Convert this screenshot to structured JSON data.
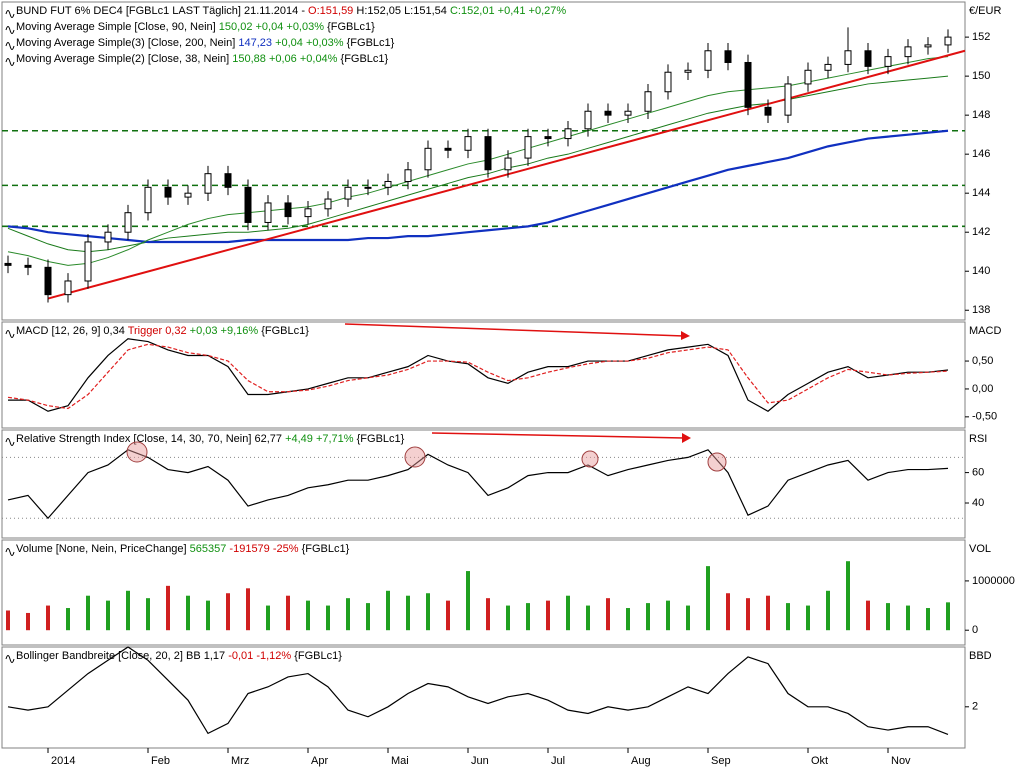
{
  "chart_data": [
    {
      "type": "candlestick",
      "axis_label": "€/EUR",
      "title_parts": [
        {
          "text": "BUND FUT 6% DEC4 [FGBLc1 LAST Täglich] 21.11.2014 - ",
          "color": "#000000"
        },
        {
          "text": "O:151,59",
          "color": "#d00000"
        },
        {
          "text": " H:152,05 L:151,54 ",
          "color": "#000000"
        },
        {
          "text": "C:152,01 +0,41 +0,27%",
          "color": "#109010"
        }
      ],
      "open": [
        140.4,
        140.3,
        140.2,
        138.8,
        139.5,
        141.5,
        142,
        143,
        144.3,
        143.8,
        144,
        145,
        144.3,
        142.5,
        143.5,
        142.8,
        143.2,
        143.7,
        144.3,
        144.3,
        144.6,
        145.2,
        146.3,
        146.2,
        146.9,
        145.2,
        145.8,
        146.9,
        146.8,
        147.3,
        148.2,
        148,
        148.2,
        149.2,
        150.2,
        150.3,
        151.3,
        150.7,
        148.4,
        148,
        149.6,
        150.3,
        150.6,
        151.3,
        150.5,
        151,
        151.5,
        151.6
      ],
      "high": [
        140.8,
        140.7,
        140.6,
        139.9,
        141.9,
        142.4,
        143.4,
        144.7,
        144.7,
        144.4,
        145.4,
        145.4,
        144.7,
        143.9,
        143.9,
        143.6,
        144.1,
        144.7,
        144.7,
        145.0,
        145.6,
        146.7,
        146.7,
        147.3,
        147.3,
        146.2,
        147.3,
        147.3,
        147.7,
        148.6,
        148.6,
        148.6,
        149.6,
        150.6,
        150.7,
        151.7,
        151.7,
        151.1,
        148.8,
        150.0,
        150.7,
        151.0,
        152.5,
        151.7,
        151.4,
        151.9,
        152.0,
        152.4
      ],
      "low": [
        139.9,
        139.8,
        138.4,
        138.4,
        139.1,
        141.1,
        141.6,
        142.6,
        143.4,
        143.4,
        143.6,
        143.9,
        142.1,
        142.1,
        142.4,
        142.4,
        142.8,
        143.3,
        143.9,
        143.9,
        144.2,
        144.8,
        145.8,
        145.8,
        144.8,
        144.8,
        145.4,
        146.4,
        146.4,
        146.9,
        147.6,
        147.6,
        147.8,
        148.8,
        149.8,
        149.9,
        150.3,
        148.0,
        147.6,
        147.6,
        149.2,
        149.9,
        150.2,
        150.1,
        150.1,
        150.6,
        151.1,
        151.2
      ],
      "close": [
        140.3,
        140.2,
        138.8,
        139.5,
        141.5,
        142,
        143,
        144.3,
        143.8,
        144,
        145,
        144.3,
        142.5,
        143.5,
        142.8,
        143.2,
        143.7,
        144.3,
        144.3,
        144.6,
        145.2,
        146.3,
        146.2,
        146.9,
        145.2,
        145.8,
        146.9,
        146.8,
        147.3,
        148.2,
        148,
        148.2,
        149.2,
        150.2,
        150.3,
        151.3,
        150.7,
        148.4,
        148,
        149.6,
        150.3,
        150.6,
        151.3,
        150.5,
        151,
        151.5,
        151.6,
        152.0
      ],
      "series": [
        {
          "name": "Moving Average Simple [Close, 90, Nein] ",
          "color": "#1a7a1a",
          "legend": [
            {
              "text": "150,02 ",
              "color": "#109010"
            },
            {
              "text": "+0,04 +0,03% ",
              "color": "#109010"
            },
            {
              "text": "{FGBLc1}",
              "color": "#000000"
            }
          ],
          "values": [
            142.2,
            141.8,
            141.4,
            141.1,
            141,
            141.1,
            141.3,
            141.5,
            141.7,
            141.8,
            141.9,
            142,
            142,
            142.1,
            142.2,
            142.4,
            142.7,
            143,
            143.3,
            143.6,
            143.9,
            144.2,
            144.5,
            144.8,
            145,
            145.3,
            145.5,
            145.8,
            146,
            146.3,
            146.6,
            146.9,
            147.2,
            147.5,
            147.8,
            148.1,
            148.3,
            148.5,
            148.6,
            148.8,
            149,
            149.2,
            149.4,
            149.6,
            149.7,
            149.8,
            149.9,
            150.0
          ]
        },
        {
          "name": "Moving Average Simple(3) [Close, 200, Nein] ",
          "color": "#1030c0",
          "legend": [
            {
              "text": "147,23 ",
              "color": "#1030c0"
            },
            {
              "text": "+0,04 +0,03% ",
              "color": "#109010"
            },
            {
              "text": "{FGBLc1}",
              "color": "#000000"
            }
          ],
          "values": [
            142.3,
            142.2,
            142,
            141.9,
            141.8,
            141.7,
            141.6,
            141.5,
            141.5,
            141.5,
            141.5,
            141.5,
            141.6,
            141.6,
            141.6,
            141.6,
            141.6,
            141.6,
            141.7,
            141.7,
            141.8,
            141.8,
            141.9,
            142,
            142.1,
            142.2,
            142.3,
            142.5,
            142.8,
            143.1,
            143.4,
            143.7,
            144,
            144.3,
            144.6,
            144.9,
            145.2,
            145.4,
            145.6,
            145.8,
            146.1,
            146.4,
            146.6,
            146.8,
            146.9,
            147,
            147.1,
            147.2
          ]
        },
        {
          "name": "Moving Average Simple(2) [Close, 38, Nein] ",
          "color": "#2a8a2a",
          "legend": [
            {
              "text": "150,88 ",
              "color": "#109010"
            },
            {
              "text": "+0,06 +0,04% ",
              "color": "#109010"
            },
            {
              "text": "{FGBLc1}",
              "color": "#000000"
            }
          ],
          "values": [
            141,
            140.8,
            140.5,
            140.3,
            140.4,
            140.7,
            141.1,
            141.6,
            142,
            142.4,
            142.7,
            142.9,
            143,
            143.1,
            143.2,
            143.3,
            143.5,
            143.8,
            144,
            144.3,
            144.6,
            144.9,
            145.2,
            145.5,
            145.7,
            146,
            146.3,
            146.6,
            146.9,
            147.2,
            147.5,
            147.8,
            148.1,
            148.4,
            148.7,
            149,
            149.2,
            149.3,
            149.4,
            149.5,
            149.7,
            149.9,
            150.1,
            150.3,
            150.5,
            150.7,
            150.9,
            151.0
          ]
        }
      ],
      "trendline": {
        "x": [
          2,
          47.85
        ],
        "values": [
          138.6,
          151.3
        ],
        "color": "#e01010"
      },
      "hlines": [
        147.2,
        144.4,
        142.3
      ],
      "hline_color": "#107010",
      "ylim": [
        137.5,
        153.8
      ],
      "yticks": [
        138,
        140,
        142,
        144,
        146,
        148,
        150,
        152
      ]
    },
    {
      "type": "line",
      "axis_label": "MACD",
      "title_parts": [
        {
          "text": "MACD [12, 26, 9] 0,34 ",
          "color": "#000000"
        },
        {
          "text": "Trigger 0,32 ",
          "color": "#d00000"
        },
        {
          "text": "+0,03 +9,16% ",
          "color": "#109010"
        },
        {
          "text": "{FGBLc1}",
          "color": "#000000"
        }
      ],
      "series": [
        {
          "color": "#000000",
          "values": [
            -0.2,
            -0.2,
            -0.4,
            -0.3,
            0.2,
            0.6,
            0.9,
            0.85,
            0.7,
            0.6,
            0.6,
            0.4,
            -0.1,
            -0.1,
            -0.05,
            0,
            0.1,
            0.2,
            0.2,
            0.3,
            0.4,
            0.6,
            0.5,
            0.45,
            0.2,
            0.1,
            0.3,
            0.4,
            0.4,
            0.5,
            0.5,
            0.5,
            0.6,
            0.7,
            0.75,
            0.8,
            0.6,
            -0.2,
            -0.4,
            -0.1,
            0.1,
            0.3,
            0.4,
            0.2,
            0.25,
            0.3,
            0.3,
            0.34
          ]
        },
        {
          "color": "#e02020",
          "dashed": true,
          "values": [
            -0.15,
            -0.2,
            -0.3,
            -0.35,
            -0.1,
            0.3,
            0.7,
            0.8,
            0.75,
            0.65,
            0.6,
            0.5,
            0.15,
            -0.05,
            -0.05,
            -0.02,
            0.05,
            0.15,
            0.2,
            0.25,
            0.35,
            0.5,
            0.5,
            0.48,
            0.3,
            0.15,
            0.2,
            0.3,
            0.38,
            0.45,
            0.5,
            0.5,
            0.55,
            0.65,
            0.7,
            0.75,
            0.7,
            0.2,
            -0.25,
            -0.2,
            0,
            0.2,
            0.35,
            0.3,
            0.25,
            0.28,
            0.3,
            0.32
          ]
        }
      ],
      "ylim": [
        -0.7,
        1.2
      ],
      "yticks": [
        {
          "value": 0.5,
          "label": "0,50"
        },
        {
          "value": 0,
          "label": "0,00"
        },
        {
          "value": -0.5,
          "label": "-0,50"
        }
      ]
    },
    {
      "type": "line",
      "axis_label": "RSI",
      "title_parts": [
        {
          "text": "Relative Strength Index [Close, 14, 30, 70, Nein] 62,77 ",
          "color": "#000000"
        },
        {
          "text": "+4,49 +7,71% ",
          "color": "#109010"
        },
        {
          "text": "{FGBLc1}",
          "color": "#000000"
        }
      ],
      "series": [
        {
          "color": "#000000",
          "values": [
            42,
            45,
            30,
            45,
            60,
            65,
            75,
            70,
            62,
            60,
            64,
            55,
            38,
            42,
            45,
            50,
            52,
            55,
            55,
            58,
            62,
            72,
            65,
            60,
            45,
            50,
            58,
            60,
            60,
            65,
            58,
            62,
            65,
            68,
            70,
            75,
            60,
            32,
            38,
            55,
            60,
            65,
            68,
            55,
            60,
            62,
            62,
            62.77
          ]
        }
      ],
      "levels": [
        30,
        70
      ],
      "ylim": [
        17,
        88
      ],
      "yticks": [
        40,
        60
      ]
    },
    {
      "type": "bar",
      "axis_label": "VOL",
      "title_parts": [
        {
          "text": "Volume [None, Nein, PriceChange] ",
          "color": "#000000"
        },
        {
          "text": "565357 ",
          "color": "#109010"
        },
        {
          "text": "-191579 -25% ",
          "color": "#d00000"
        },
        {
          "text": "{FGBLc1}",
          "color": "#000000"
        }
      ],
      "values": [
        400000,
        350000,
        500000,
        450000,
        700000,
        600000,
        800000,
        650000,
        900000,
        700000,
        600000,
        750000,
        850000,
        500000,
        700000,
        600000,
        500000,
        650000,
        550000,
        800000,
        700000,
        750000,
        600000,
        1200000,
        650000,
        500000,
        550000,
        600000,
        700000,
        500000,
        650000,
        450000,
        550000,
        600000,
        500000,
        1300000,
        750000,
        650000,
        700000,
        550000,
        500000,
        800000,
        1400000,
        600000,
        550000,
        500000,
        450000,
        565357
      ],
      "colors": [
        "#d02020",
        "#d02020",
        "#d02020",
        "#20a020",
        "#20a020",
        "#20a020",
        "#20a020",
        "#20a020",
        "#d02020",
        "#20a020",
        "#20a020",
        "#d02020",
        "#d02020",
        "#20a020",
        "#d02020",
        "#20a020",
        "#20a020",
        "#20a020",
        "#20a020",
        "#20a020",
        "#20a020",
        "#20a020",
        "#d02020",
        "#20a020",
        "#d02020",
        "#20a020",
        "#20a020",
        "#d02020",
        "#20a020",
        "#20a020",
        "#d02020",
        "#20a020",
        "#20a020",
        "#20a020",
        "#20a020",
        "#20a020",
        "#d02020",
        "#d02020",
        "#d02020",
        "#20a020",
        "#20a020",
        "#20a020",
        "#20a020",
        "#d02020",
        "#20a020",
        "#20a020",
        "#20a020",
        "#20a020"
      ],
      "ylim": [
        -300000,
        1830000
      ],
      "yticks": [
        0,
        1000000
      ]
    },
    {
      "type": "line",
      "axis_label": "BBD",
      "title_parts": [
        {
          "text": "Bollinger Bandbreite [Close, 20, 2] BB 1,17 ",
          "color": "#000000"
        },
        {
          "text": "-0,01 -1,12% ",
          "color": "#d00000"
        },
        {
          "text": "{FGBLc1}",
          "color": "#000000"
        }
      ],
      "series": [
        {
          "color": "#000000",
          "values": [
            2.0,
            1.9,
            2.0,
            2.5,
            3.0,
            3.4,
            3.8,
            3.4,
            2.8,
            2.2,
            1.2,
            1.5,
            2.4,
            2.6,
            2.9,
            3.0,
            2.6,
            1.9,
            1.7,
            2.0,
            2.4,
            2.7,
            2.6,
            2.3,
            2.1,
            2.3,
            2.4,
            2.2,
            1.9,
            1.8,
            2.0,
            1.9,
            2.0,
            2.3,
            2.6,
            2.4,
            3.0,
            3.5,
            3.3,
            2.4,
            2.0,
            2.0,
            1.8,
            1.4,
            1.3,
            1.4,
            1.4,
            1.17
          ]
        }
      ],
      "categories": [
        null,
        null,
        "2014",
        null,
        null,
        null,
        null,
        "Feb",
        null,
        null,
        null,
        "Mrz",
        null,
        null,
        null,
        "Apr",
        null,
        null,
        null,
        "Mai",
        null,
        null,
        null,
        "Jun",
        null,
        null,
        null,
        "Jul",
        null,
        null,
        null,
        "Aug",
        null,
        null,
        null,
        "Sep",
        null,
        null,
        null,
        null,
        "Okt",
        null,
        null,
        null,
        "Nov",
        null,
        null,
        null
      ],
      "ylim": [
        0.76,
        3.8
      ],
      "yticks": [
        2
      ]
    }
  ]
}
